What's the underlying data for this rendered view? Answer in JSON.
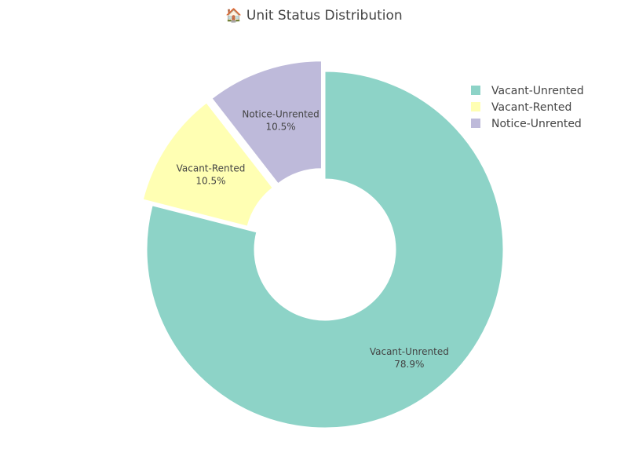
{
  "chart_data": {
    "type": "pie",
    "hole": true,
    "title": "🏠 Unit Status Distribution",
    "categories": [
      "Vacant-Unrented",
      "Vacant-Rented",
      "Notice-Unrented"
    ],
    "values": [
      78.9,
      10.5,
      10.5
    ],
    "percent_labels": [
      "78.9%",
      "10.5%",
      "10.5%"
    ],
    "colors": [
      "#8dd3c7",
      "#ffffb3",
      "#bebada"
    ],
    "legend_position": "top-right",
    "pulled_slices": [
      "Vacant-Unrented",
      "Vacant-Rented",
      "Notice-Unrented"
    ]
  }
}
